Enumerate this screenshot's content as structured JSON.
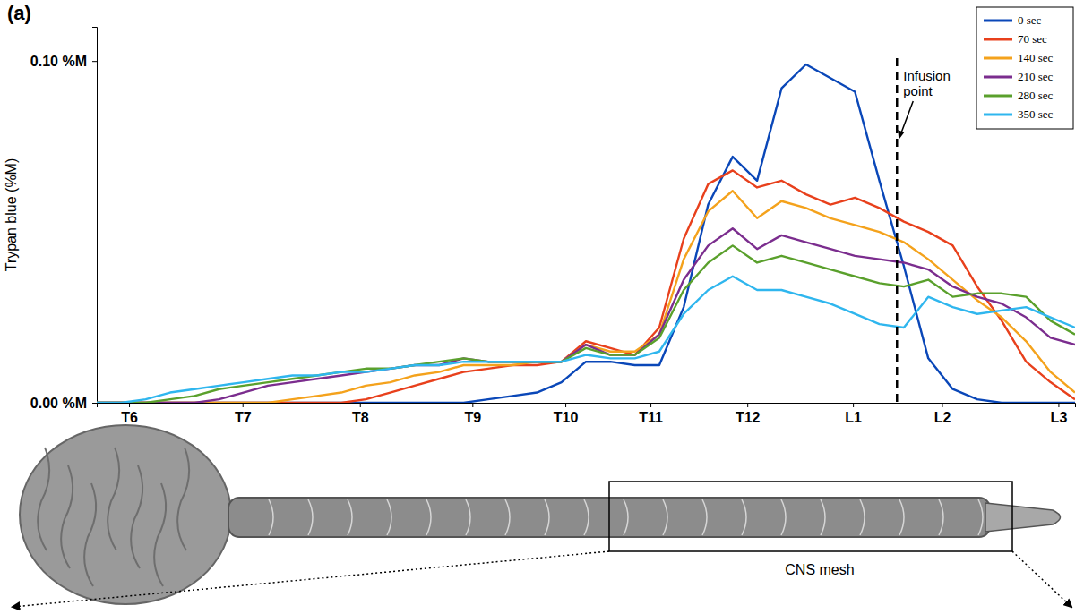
{
  "chart_data": {
    "type": "line",
    "panel_label": "(a)",
    "y_label": "Trypan blue (%M)",
    "x": [
      0,
      2.5,
      5,
      7.5,
      10,
      12.5,
      15,
      17.5,
      20,
      22.5,
      25,
      27.5,
      30,
      32.5,
      35,
      37.5,
      40,
      42.5,
      45,
      47.5,
      50,
      52.5,
      55,
      57.5,
      60,
      62.5,
      65,
      67.5,
      70,
      72.5,
      75,
      77.5,
      80,
      82.5,
      85,
      87.5,
      90,
      92.5,
      95,
      97.5,
      100
    ],
    "xlim": [
      0,
      100
    ],
    "xticks": [
      {
        "value": 3.3,
        "label": "T6"
      },
      {
        "value": 14.9,
        "label": "T7"
      },
      {
        "value": 26.9,
        "label": "T8"
      },
      {
        "value": 38.4,
        "label": "T9"
      },
      {
        "value": 47.9,
        "label": "T10"
      },
      {
        "value": 56.6,
        "label": "T11"
      },
      {
        "value": 66.5,
        "label": "T12"
      },
      {
        "value": 77.3,
        "label": "L1"
      },
      {
        "value": 86.4,
        "label": "L2"
      },
      {
        "value": 98.3,
        "label": "L3"
      }
    ],
    "ylim": [
      0,
      0.11
    ],
    "yticks": [
      {
        "value": 0,
        "label": "0.00 %M"
      },
      {
        "value": 0.1,
        "label": "0.10 %M"
      }
    ],
    "grid": false,
    "legend": "top-right",
    "annotations": [
      {
        "text": "Infusion point",
        "x": 81.8
      }
    ],
    "series": [
      {
        "name": "0 sec",
        "color": "#0a47b8",
        "values": [
          0,
          0,
          0,
          0,
          0,
          0,
          0,
          0,
          0,
          0,
          0,
          0,
          0,
          0,
          0,
          0,
          0.001,
          0.002,
          0.003,
          0.006,
          0.012,
          0.012,
          0.011,
          0.011,
          0.028,
          0.058,
          0.072,
          0.065,
          0.092,
          0.099,
          0.095,
          0.091,
          0.065,
          0.04,
          0.013,
          0.004,
          0.001,
          0,
          0,
          0,
          0
        ]
      },
      {
        "name": "70 sec",
        "color": "#e8401c",
        "values": [
          0,
          0,
          0,
          0,
          0,
          0,
          0,
          0,
          0,
          0,
          0,
          0.001,
          0.003,
          0.005,
          0.007,
          0.009,
          0.01,
          0.011,
          0.011,
          0.012,
          0.018,
          0.016,
          0.014,
          0.022,
          0.048,
          0.064,
          0.068,
          0.063,
          0.065,
          0.061,
          0.058,
          0.06,
          0.057,
          0.053,
          0.05,
          0.046,
          0.034,
          0.024,
          0.012,
          0.006,
          0.001
        ]
      },
      {
        "name": "140 sec",
        "color": "#f4a21c",
        "values": [
          0,
          0,
          0,
          0,
          0,
          0,
          0,
          0,
          0.001,
          0.002,
          0.003,
          0.005,
          0.006,
          0.008,
          0.009,
          0.011,
          0.011,
          0.011,
          0.012,
          0.012,
          0.017,
          0.015,
          0.015,
          0.02,
          0.042,
          0.056,
          0.062,
          0.054,
          0.059,
          0.057,
          0.054,
          0.052,
          0.05,
          0.047,
          0.042,
          0.036,
          0.03,
          0.025,
          0.018,
          0.009,
          0.003
        ]
      },
      {
        "name": "210 sec",
        "color": "#7b2d8e",
        "values": [
          0,
          0,
          0,
          0,
          0,
          0.001,
          0.003,
          0.005,
          0.006,
          0.007,
          0.008,
          0.009,
          0.01,
          0.011,
          0.011,
          0.013,
          0.012,
          0.012,
          0.012,
          0.012,
          0.017,
          0.014,
          0.014,
          0.02,
          0.036,
          0.046,
          0.051,
          0.045,
          0.049,
          0.047,
          0.045,
          0.043,
          0.042,
          0.041,
          0.039,
          0.034,
          0.031,
          0.029,
          0.025,
          0.019,
          0.017
        ]
      },
      {
        "name": "280 sec",
        "color": "#5aa02c",
        "values": [
          0,
          0,
          0,
          0.001,
          0.002,
          0.004,
          0.005,
          0.006,
          0.007,
          0.008,
          0.009,
          0.01,
          0.01,
          0.011,
          0.012,
          0.013,
          0.012,
          0.012,
          0.012,
          0.012,
          0.016,
          0.014,
          0.014,
          0.019,
          0.033,
          0.041,
          0.046,
          0.041,
          0.043,
          0.041,
          0.039,
          0.037,
          0.035,
          0.034,
          0.036,
          0.031,
          0.032,
          0.032,
          0.031,
          0.024,
          0.02
        ]
      },
      {
        "name": "350 sec",
        "color": "#2fb6ee",
        "values": [
          0,
          0,
          0.001,
          0.003,
          0.004,
          0.005,
          0.006,
          0.007,
          0.008,
          0.008,
          0.009,
          0.009,
          0.01,
          0.011,
          0.011,
          0.012,
          0.012,
          0.012,
          0.012,
          0.012,
          0.014,
          0.013,
          0.013,
          0.015,
          0.026,
          0.033,
          0.037,
          0.033,
          0.033,
          0.031,
          0.029,
          0.026,
          0.023,
          0.022,
          0.031,
          0.028,
          0.026,
          0.027,
          0.028,
          0.025,
          0.022
        ]
      }
    ]
  },
  "figure": {
    "mesh_label": "CNS mesh"
  }
}
